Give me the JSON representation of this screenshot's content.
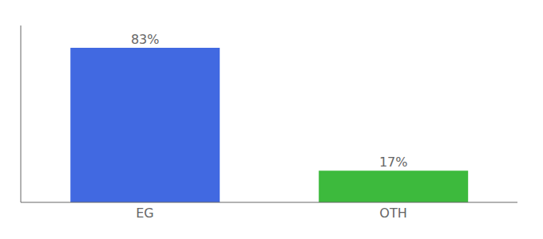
{
  "chart_data": {
    "type": "bar",
    "categories": [
      "EG",
      "OTH"
    ],
    "values": [
      83,
      17
    ],
    "value_labels": [
      "83%",
      "17%"
    ],
    "colors": [
      "#4169e1",
      "#3dba3d"
    ],
    "data_labels": true,
    "ylim": [
      0,
      95
    ],
    "tick_labels": "x",
    "grid": false
  }
}
